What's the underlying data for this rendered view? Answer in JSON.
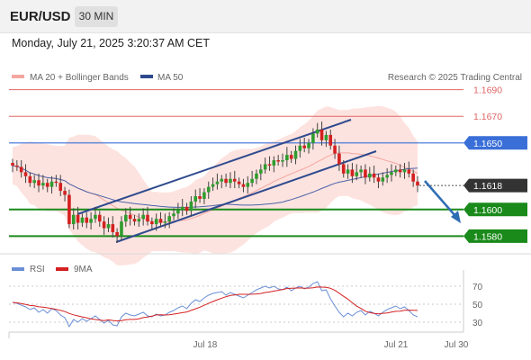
{
  "header": {
    "pair": "EUR/USD",
    "timeframe": "30 MIN"
  },
  "datetime": "Monday, July 21, 2025 3:20:37 AM CET",
  "legend": {
    "ma20": "MA 20 + Bollinger Bands",
    "ma50": "MA 50",
    "credit": "Research © 2025 Trading Central"
  },
  "rsi_legend": {
    "rsi": "RSI",
    "ma": "9MA"
  },
  "colors": {
    "candle_up": "#2e9d2e",
    "candle_down": "#d42020",
    "resistance": "#e06666",
    "support": "#1a8a1a",
    "pivot": "#3a6fd8",
    "current": "#333333",
    "channel": "#2e4a8e",
    "ma50": "#4a62a8",
    "bollinger": "#fcd9d4",
    "rsi": "#6a8fd6",
    "rsi_ma": "#d42020",
    "arrow": "#2f6db3"
  },
  "chart_data": {
    "type": "candlestick",
    "ylim": [
      1.156,
      1.171
    ],
    "x_labels": [
      "Jul 18",
      "Jul 21",
      "Jul 30"
    ],
    "levels": [
      {
        "value": 1.169,
        "label": "1.1690",
        "kind": "resistance"
      },
      {
        "value": 1.167,
        "label": "1.1670",
        "kind": "resistance"
      },
      {
        "value": 1.165,
        "label": "1.1650",
        "kind": "pivot"
      },
      {
        "value": 1.1618,
        "label": "1.1618",
        "kind": "current"
      },
      {
        "value": 1.16,
        "label": "1.1600",
        "kind": "support"
      },
      {
        "value": 1.158,
        "label": "1.1580",
        "kind": "support"
      }
    ],
    "close_series": [
      1.1633,
      1.1632,
      1.1628,
      1.1625,
      1.162,
      1.1622,
      1.1618,
      1.162,
      1.1617,
      1.1621,
      1.162,
      1.1614,
      1.1611,
      1.1589,
      1.1596,
      1.159,
      1.1594,
      1.159,
      1.1593,
      1.1596,
      1.1591,
      1.1586,
      1.1589,
      1.1583,
      1.158,
      1.1591,
      1.1596,
      1.1593,
      1.1591,
      1.1593,
      1.1596,
      1.1591,
      1.1589,
      1.1593,
      1.159,
      1.1591,
      1.1595,
      1.1597,
      1.16,
      1.1602,
      1.1599,
      1.1606,
      1.161,
      1.1608,
      1.1613,
      1.1617,
      1.1619,
      1.1621,
      1.1623,
      1.162,
      1.1623,
      1.1621,
      1.1619,
      1.1617,
      1.162,
      1.1623,
      1.1627,
      1.163,
      1.1634,
      1.1633,
      1.1637,
      1.1636,
      1.1637,
      1.1641,
      1.1638,
      1.1644,
      1.1648,
      1.1646,
      1.165,
      1.1657,
      1.166,
      1.1652,
      1.1656,
      1.1648,
      1.1642,
      1.1634,
      1.1627,
      1.163,
      1.1625,
      1.1628,
      1.163,
      1.1624,
      1.1627,
      1.1624,
      1.1621,
      1.1624,
      1.1626,
      1.1628,
      1.163,
      1.1628,
      1.163,
      1.1627,
      1.1621,
      1.1618
    ],
    "rsi_axis": [
      70,
      50,
      30
    ],
    "rsi_ylim": [
      20,
      80
    ],
    "rsi_series": [
      52,
      51,
      49,
      47,
      44,
      46,
      41,
      44,
      40,
      45,
      43,
      38,
      35,
      25,
      33,
      30,
      34,
      31,
      34,
      37,
      33,
      29,
      32,
      27,
      26,
      36,
      40,
      38,
      37,
      39,
      41,
      37,
      36,
      39,
      37,
      38,
      41,
      43,
      46,
      48,
      45,
      51,
      55,
      53,
      57,
      60,
      62,
      63,
      64,
      60,
      63,
      61,
      59,
      57,
      60,
      63,
      66,
      68,
      70,
      68,
      70,
      67,
      66,
      69,
      65,
      68,
      70,
      67,
      69,
      73,
      75,
      65,
      66,
      56,
      48,
      41,
      36,
      40,
      37,
      41,
      43,
      38,
      42,
      40,
      37,
      41,
      44,
      46,
      48,
      45,
      47,
      43,
      38,
      36
    ]
  }
}
